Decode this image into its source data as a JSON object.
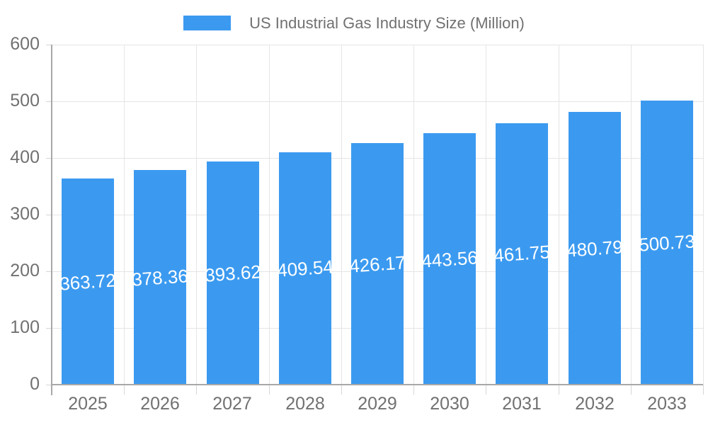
{
  "legend": {
    "series_label": "US Industrial Gas Industry Size (Million)"
  },
  "colors": {
    "bar": "#3B9AF0",
    "bar_label_text": "#FFFFFF",
    "grid_line": "#E5E5E5",
    "axis_line": "#A8A8A8",
    "minor_tick": "#D6D6D6",
    "axis_text": "#717171"
  },
  "chart_data": {
    "type": "bar",
    "title": "",
    "xlabel": "",
    "ylabel": "",
    "categories": [
      "2025",
      "2026",
      "2027",
      "2028",
      "2029",
      "2030",
      "2031",
      "2032",
      "2033"
    ],
    "series": [
      {
        "name": "US Industrial Gas Industry Size (Million)",
        "values": [
          363.72,
          378.36,
          393.62,
          409.54,
          426.17,
          443.56,
          461.75,
          480.79,
          500.73
        ]
      }
    ],
    "value_labels": [
      "363.72",
      "378.36",
      "393.62",
      "409.54",
      "426.17",
      "443.56",
      "461.75",
      "480.79",
      "500.73"
    ],
    "ylim": [
      0,
      600
    ],
    "ytick_step": 100,
    "ytick_labels": [
      "0",
      "100",
      "200",
      "300",
      "400",
      "500",
      "600"
    ],
    "grid": true,
    "legend_position": "top",
    "value_label_position": "inside-middle",
    "value_label_rotation_deg": -4
  }
}
